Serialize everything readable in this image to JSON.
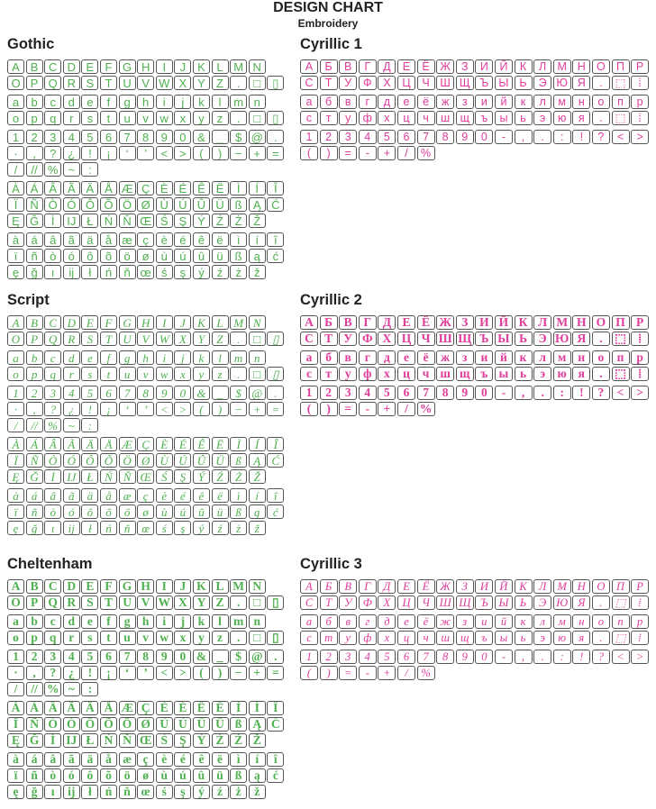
{
  "header": {
    "title": "DESIGN CHART",
    "subtitle": "Embroidery"
  },
  "colors": {
    "latin": "#4fb04f",
    "cyrillic": "#e03c9b",
    "border": "#555555"
  },
  "latin_groups": [
    [
      [
        "A",
        "B",
        "C",
        "D",
        "E",
        "F",
        "G",
        "H",
        "I",
        "J",
        "K",
        "L",
        "M",
        "N"
      ],
      [
        "O",
        "P",
        "Q",
        "R",
        "S",
        "T",
        "U",
        "V",
        "W",
        "X",
        "Y",
        "Z",
        ".",
        "□",
        "▯"
      ]
    ],
    [
      [
        "a",
        "b",
        "c",
        "d",
        "e",
        "f",
        "g",
        "h",
        "i",
        "j",
        "k",
        "l",
        "m",
        "n"
      ],
      [
        "o",
        "p",
        "q",
        "r",
        "s",
        "t",
        "u",
        "v",
        "w",
        "x",
        "y",
        "z",
        ".",
        "□",
        "▯"
      ]
    ],
    [
      [
        "1",
        "2",
        "3",
        "4",
        "5",
        "6",
        "7",
        "8",
        "9",
        "0",
        "&",
        "_",
        "$",
        "@",
        "."
      ],
      [
        "·",
        ",",
        "?",
        "¿",
        "!",
        "¡",
        "‘",
        "’",
        "<",
        ">",
        "(",
        ")",
        "−",
        "+",
        "="
      ],
      [
        "/",
        "//",
        "%",
        "~",
        ":"
      ]
    ],
    [
      [
        "À",
        "Á",
        "Â",
        "Ã",
        "Ä",
        "Å",
        "Æ",
        "Ç",
        "È",
        "É",
        "Ê",
        "Ë",
        "Ì",
        "Í",
        "Î"
      ],
      [
        "Ï",
        "Ñ",
        "Ò",
        "Ó",
        "Ô",
        "Õ",
        "Ö",
        "Ø",
        "Ù",
        "Ú",
        "Û",
        "Ü",
        "ß",
        "Ą",
        "Ć"
      ],
      [
        "Ę",
        "Ğ",
        "İ",
        "IJ",
        "Ł",
        "Ń",
        "Ň",
        "Œ",
        "Ś",
        "Ş",
        "Ý",
        "Ź",
        "Ż",
        "Ž"
      ]
    ],
    [
      [
        "à",
        "á",
        "â",
        "ã",
        "ä",
        "å",
        "æ",
        "ç",
        "è",
        "é",
        "ê",
        "ë",
        "ì",
        "í",
        "î"
      ],
      [
        "ï",
        "ñ",
        "ò",
        "ó",
        "ô",
        "õ",
        "ö",
        "ø",
        "ù",
        "ú",
        "û",
        "ü",
        "ß",
        "ą",
        "ć"
      ],
      [
        "ę",
        "ğ",
        "ı",
        "ij",
        "ł",
        "ń",
        "ň",
        "œ",
        "ś",
        "ş",
        "ý",
        "ź",
        "ż",
        "ž"
      ]
    ]
  ],
  "cyrillic_groups": [
    [
      [
        "А",
        "Б",
        "В",
        "Г",
        "Д",
        "Е",
        "Ё",
        "Ж",
        "З",
        "И",
        "Й",
        "К",
        "Л",
        "М",
        "Н",
        "О",
        "П",
        "Р"
      ],
      [
        "С",
        "Т",
        "У",
        "Ф",
        "Х",
        "Ц",
        "Ч",
        "Ш",
        "Щ",
        "Ъ",
        "Ы",
        "Ь",
        "Э",
        "Ю",
        "Я",
        ".",
        "⬚",
        "⁞"
      ]
    ],
    [
      [
        "а",
        "б",
        "в",
        "г",
        "д",
        "е",
        "ё",
        "ж",
        "з",
        "и",
        "й",
        "к",
        "л",
        "м",
        "н",
        "о",
        "п",
        "р"
      ],
      [
        "с",
        "т",
        "у",
        "ф",
        "х",
        "ц",
        "ч",
        "ш",
        "щ",
        "ъ",
        "ы",
        "ь",
        "э",
        "ю",
        "я",
        ".",
        "⬚",
        "⁞"
      ]
    ],
    [
      [
        "1",
        "2",
        "3",
        "4",
        "5",
        "6",
        "7",
        "8",
        "9",
        "0",
        "-",
        ",",
        ".",
        ":",
        "!",
        "?",
        "<",
        ">"
      ],
      [
        "(",
        ")",
        "=",
        "-",
        "+",
        "/",
        "%"
      ]
    ]
  ],
  "sections": [
    {
      "title": "Gothic",
      "script": "latin",
      "style": "sans"
    },
    {
      "title": "Script",
      "script": "latin",
      "style": "script"
    },
    {
      "title": "Cheltenham",
      "script": "latin",
      "style": "serif"
    },
    {
      "title": "Cyrillic 1",
      "script": "cyrillic",
      "style": "sans"
    },
    {
      "title": "Cyrillic 2",
      "script": "cyrillic",
      "style": "serif"
    },
    {
      "title": "Cyrillic 3",
      "script": "cyrillic",
      "style": "serifitalic"
    }
  ]
}
